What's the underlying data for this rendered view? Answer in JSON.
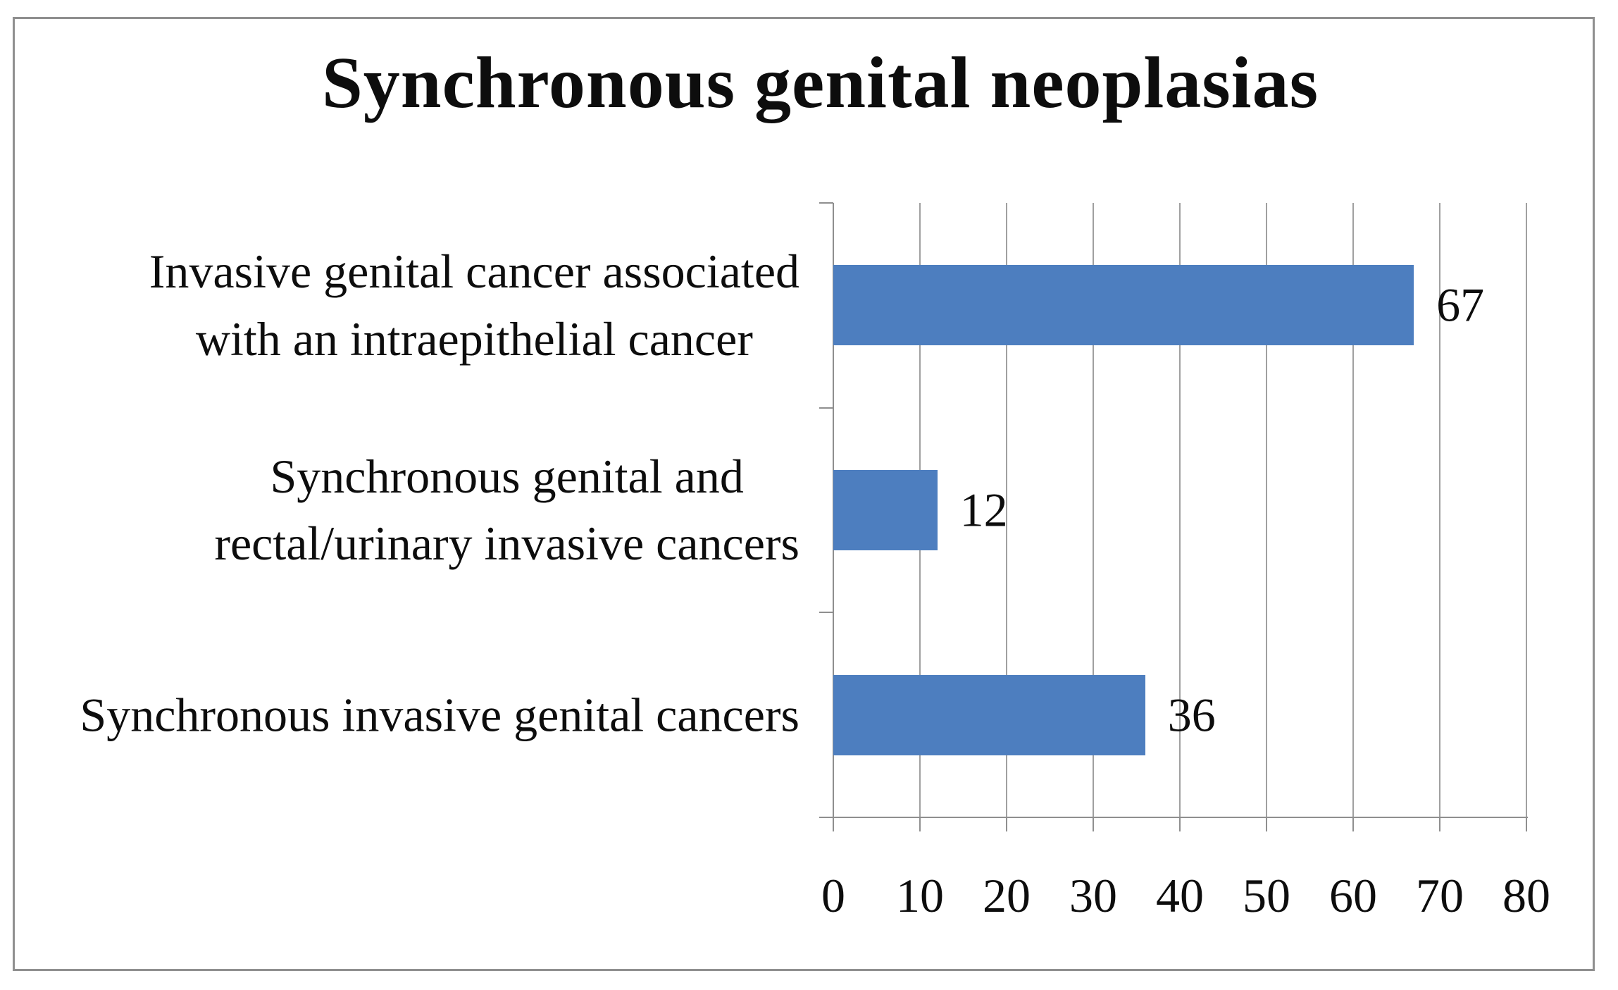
{
  "chart_data": {
    "type": "bar",
    "orientation": "horizontal",
    "title": "Synchronous genital neoplasias",
    "categories": [
      "Invasive genital cancer associated\nwith an intraepithelial cancer",
      "Synchronous genital and\nrectal/urinary invasive cancers",
      "Synchronous invasive genital cancers"
    ],
    "values": [
      67,
      12,
      36
    ],
    "data_labels": [
      "67",
      "12",
      "36"
    ],
    "xlabel": "",
    "ylabel": "",
    "xlim": [
      0,
      80
    ],
    "xticks": [
      0,
      10,
      20,
      30,
      40,
      50,
      60,
      70,
      80
    ],
    "grid": "vertical-major",
    "legend": false,
    "colors": {
      "bar": "#4d7ebf",
      "grid": "#a0a0a0",
      "axis": "#8f8f8f",
      "text": "#0d0d0d",
      "frame_border": "#8f8f8f",
      "background": "#ffffff"
    }
  }
}
